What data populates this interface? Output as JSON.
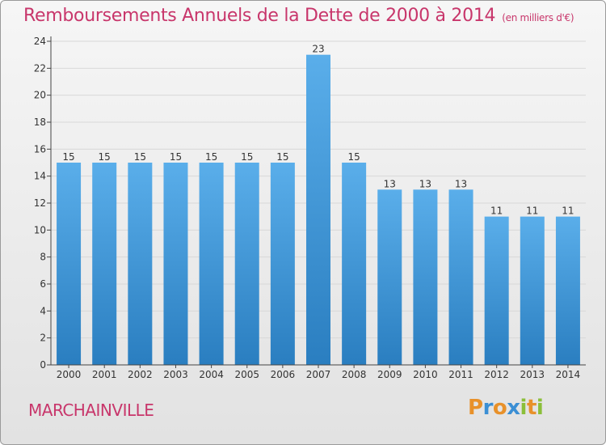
{
  "header": {
    "title": "Remboursements Annuels de la Dette de 2000 à 2014",
    "unit": "(en milliers d'€)"
  },
  "footer": {
    "commune": "MARCHAINVILLE",
    "brand_letters": [
      "P",
      "r",
      "o",
      "x",
      "i",
      "t",
      "i"
    ],
    "brand_colors": [
      "#e8912a",
      "#3b8fd4",
      "#e8912a",
      "#3b8fd4",
      "#8bbf3a",
      "#e8912a",
      "#8bbf3a"
    ]
  },
  "colors": {
    "title": "#c8366b",
    "bar_top": "#5aaeea",
    "bar_bottom": "#2a7ec0",
    "grid": "#d8d8d8",
    "axis": "#444444"
  },
  "chart_data": {
    "type": "bar",
    "categories": [
      "2000",
      "2001",
      "2002",
      "2003",
      "2004",
      "2005",
      "2006",
      "2007",
      "2008",
      "2009",
      "2010",
      "2011",
      "2012",
      "2013",
      "2014"
    ],
    "values": [
      15,
      15,
      15,
      15,
      15,
      15,
      15,
      23,
      15,
      13,
      13,
      13,
      11,
      11,
      11
    ],
    "value_labels": [
      "15",
      "15",
      "15",
      "15",
      "15",
      "15",
      "15",
      "23",
      "15",
      "13",
      "13",
      "13",
      "11",
      "11",
      "11"
    ],
    "ylim": [
      0,
      24
    ],
    "yticks": [
      "0",
      "2",
      "4",
      "6",
      "8",
      "10",
      "12",
      "14",
      "16",
      "18",
      "20",
      "22",
      "24"
    ],
    "grid": true
  }
}
